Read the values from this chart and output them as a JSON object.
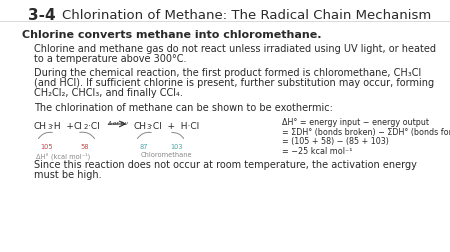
{
  "bg_color": "#ffffff",
  "title_number": "3-4",
  "title_text": "Chlorination of Methane: The Radical Chain Mechanism",
  "bold_heading": "Chlorine converts methane into chloromethane.",
  "para1": "Chlorine and methane gas do not react unless irradiated using UV light, or heated\nto a temperature above 300°C.",
  "para2": "During the chemical reaction, the first product formed is chloromethane, CH₃Cl\n(and HCl). If sufficient chlorine is present, further substitution may occur, forming\nCH₂Cl₂, CHCl₃, and finally CCl₄.",
  "para3": "The chlorination of methane can be shown to be exothermic:",
  "dH_lines": [
    "ΔH° = energy input − energy output",
    "= ΣDH° (bonds broken) − ΣDH° (bonds formed)",
    "= (105 + 58) − (85 + 103)",
    "= −25 kcal mol⁻¹"
  ],
  "para_last": "Since this reaction does not occur at room temperature, the activation energy\nmust be high.",
  "font_color": "#2a2a2a",
  "gray_color": "#888888",
  "red_color": "#cc4444",
  "teal_color": "#44aaaa",
  "title_fs": 9.5,
  "title_num_fs": 11,
  "heading_fs": 8.0,
  "para_fs": 7.0,
  "eq_fs": 6.5,
  "sub_fs": 5.0,
  "small_fs": 4.8,
  "dh_fs": 5.8
}
